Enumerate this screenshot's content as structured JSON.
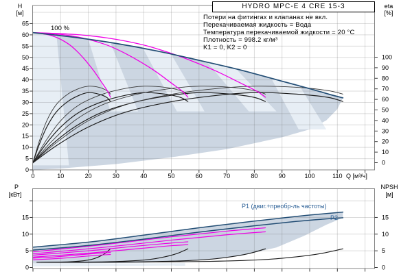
{
  "title_box": "HYDRO MPC-E 4 CRE 15-3",
  "info_lines": [
    "Потери на фитингах и клапанах не вкл.",
    "Перекачиваемая жидкость = Вода",
    "Температура перекачиваемой жидкости = 20 °C",
    "Плотность = 998.2 кг/м³",
    "K1 = 0, K2 = 0"
  ],
  "labels": {
    "speed_100": "100 %",
    "p1_curve": "P1 (двиг.+преобр-ль частоты)",
    "p2_curve": "P2",
    "h_name": "H",
    "h_unit": "[м]",
    "eta_name": "eta",
    "eta_unit": "[%]",
    "q_axis": "Q [м³/ч]",
    "p_name": "P",
    "p_unit": "[кВт]",
    "npsh_name": "NPSH",
    "npsh_unit": "[м]"
  },
  "colors": {
    "curve_blue": "#224d74",
    "curve_magenta": "#ef00e6",
    "curve_black": "#1c1c1c",
    "curve_black_soft": "#3a3a3a",
    "fill": "#ccd6e2",
    "fill_light": "#e7eef5",
    "grid": "rgba(90,90,90,0.22)",
    "frame": "#848484",
    "tick": "#3c3c3c",
    "text_blue": "#2a5f96"
  },
  "chart_data": [
    {
      "type": "line",
      "title": "HYDRO MPC-E 4 CRE 15-3",
      "xlabel": "Q [м³/ч]",
      "ylabel_left": "H [м]",
      "ylabel_right": "eta [%]",
      "xlim": [
        0,
        123.5
      ],
      "ylim_left": [
        0,
        73
      ],
      "ylim_right": [
        0,
        100
      ],
      "x_ticks": [
        0,
        10,
        20,
        30,
        40,
        50,
        60,
        70,
        80,
        90,
        100,
        110
      ],
      "h_ticks": [
        0,
        5,
        10,
        15,
        20,
        25,
        30,
        35,
        40,
        45,
        50,
        55,
        60,
        65
      ],
      "eta_ticks": [
        0,
        10,
        20,
        30,
        40,
        50,
        60,
        70,
        80,
        90,
        100
      ],
      "grid": true,
      "series": [
        {
          "name": "hq-max-speed-4pumps",
          "color": "blue",
          "width": 1.7,
          "points": [
            [
              0,
              61
            ],
            [
              15,
              58.9
            ],
            [
              30,
              56.2
            ],
            [
              45,
              52.8
            ],
            [
              60,
              48.7
            ],
            [
              75,
              44.4
            ],
            [
              90,
              39.4
            ],
            [
              100,
              36.1
            ],
            [
              107,
              33.6
            ],
            [
              112,
              32
            ]
          ]
        },
        {
          "name": "hq-100pct-1pump",
          "color": "magenta",
          "width": 1.3,
          "points": [
            [
              0,
              61
            ],
            [
              5,
              60.2
            ],
            [
              9,
              58.6
            ],
            [
              13,
              55.8
            ],
            [
              16,
              52.6
            ],
            [
              19,
              48.6
            ],
            [
              22,
              44
            ],
            [
              25,
              38.6
            ],
            [
              27,
              34.9
            ],
            [
              28,
              32.3
            ]
          ]
        },
        {
          "name": "hq-100pct-2pumps",
          "color": "magenta",
          "width": 1.3,
          "points": [
            [
              0,
              61
            ],
            [
              10,
              60.2
            ],
            [
              18,
              58.6
            ],
            [
              26,
              55.8
            ],
            [
              32,
              52.6
            ],
            [
              38,
              48.6
            ],
            [
              44,
              44
            ],
            [
              50,
              38.6
            ],
            [
              54,
              34.9
            ],
            [
              56,
              32.3
            ]
          ]
        },
        {
          "name": "hq-100pct-3pumps",
          "color": "magenta",
          "width": 1.3,
          "points": [
            [
              0,
              61
            ],
            [
              15,
              60.2
            ],
            [
              27,
              58.6
            ],
            [
              39,
              55.8
            ],
            [
              48,
              52.6
            ],
            [
              57,
              48.6
            ],
            [
              66,
              44
            ],
            [
              75,
              38.6
            ],
            [
              81,
              34.9
            ],
            [
              84,
              32.3
            ]
          ]
        }
      ],
      "eta_curves": {
        "qmax": [
          28,
          56,
          84,
          112
        ],
        "profile_a": [
          [
            0,
            0
          ],
          [
            0.08,
            20
          ],
          [
            0.18,
            40
          ],
          [
            0.3,
            55
          ],
          [
            0.45,
            65
          ],
          [
            0.6,
            70.5
          ],
          [
            0.72,
            72.5
          ],
          [
            0.85,
            71.5
          ],
          [
            0.95,
            68.5
          ],
          [
            1,
            65
          ]
        ],
        "profile_b": [
          [
            0,
            0
          ],
          [
            0.08,
            17
          ],
          [
            0.18,
            34
          ],
          [
            0.3,
            48
          ],
          [
            0.45,
            58
          ],
          [
            0.6,
            64
          ],
          [
            0.72,
            66.5
          ],
          [
            0.85,
            65
          ],
          [
            0.95,
            62
          ],
          [
            1,
            58
          ]
        ]
      },
      "envelope": {
        "upper": [
          [
            0,
            61
          ],
          [
            15,
            58.9
          ],
          [
            30,
            56.2
          ],
          [
            45,
            52.8
          ],
          [
            60,
            48.7
          ],
          [
            75,
            44.4
          ],
          [
            90,
            39.4
          ],
          [
            100,
            36.1
          ],
          [
            107,
            33.6
          ],
          [
            112,
            32
          ]
        ],
        "lower": [
          [
            0,
            0
          ],
          [
            10,
            0.6
          ],
          [
            30,
            2.6
          ],
          [
            50,
            5.6
          ],
          [
            70,
            9.2
          ],
          [
            90,
            14.5
          ],
          [
            100,
            18
          ],
          [
            106,
            22
          ],
          [
            110,
            27
          ],
          [
            112,
            32
          ]
        ]
      },
      "light_bands": [
        [
          [
            0,
            61
          ],
          [
            8.5,
            60
          ],
          [
            13,
            2
          ],
          [
            0,
            2
          ]
        ],
        [
          [
            20,
            58
          ],
          [
            28,
            56.5
          ],
          [
            38,
            26
          ],
          [
            28,
            26
          ]
        ],
        [
          [
            40,
            53.5
          ],
          [
            50,
            51.3
          ],
          [
            62,
            26
          ],
          [
            52,
            26
          ]
        ],
        [
          [
            63,
            47.8
          ],
          [
            73,
            45.4
          ],
          [
            88,
            26
          ],
          [
            78,
            26
          ]
        ],
        [
          [
            86,
            41
          ],
          [
            96,
            38
          ],
          [
            106,
            18
          ],
          [
            96,
            18
          ]
        ]
      ]
    },
    {
      "type": "line",
      "xlabel": "Q [м³/ч]",
      "ylabel_left": "P [кВт]",
      "ylabel_right": "NPSH [м]",
      "xlim": [
        0,
        123.5
      ],
      "ylim_left": [
        0,
        23.5
      ],
      "p_ticks_labeled": [
        0,
        5,
        10,
        15
      ],
      "p_ticks_all": [
        0,
        5,
        10,
        15,
        20
      ],
      "npsh_ticks": [
        0,
        5,
        10,
        15
      ],
      "grid": true,
      "series": [
        {
          "name": "p1-4pumps",
          "color": "blue",
          "width": 1.5,
          "points": [
            [
              0,
              6.1
            ],
            [
              20,
              7.6
            ],
            [
              40,
              9.7
            ],
            [
              60,
              11.9
            ],
            [
              80,
              13.9
            ],
            [
              95,
              15.3
            ],
            [
              105,
              16.1
            ],
            [
              112,
              16.6
            ]
          ]
        },
        {
          "name": "p2-4pumps",
          "color": "blue",
          "width": 1.5,
          "points": [
            [
              0,
              5.2
            ],
            [
              20,
              6.6
            ],
            [
              40,
              8.5
            ],
            [
              60,
              10.6
            ],
            [
              80,
              12.5
            ],
            [
              95,
              13.8
            ],
            [
              105,
              14.5
            ],
            [
              112,
              14.9
            ]
          ]
        },
        {
          "name": "p1-3pumps",
          "color": "magenta",
          "width": 1.2,
          "points": [
            [
              0,
              4.7
            ],
            [
              25,
              6.8
            ],
            [
              50,
              9.2
            ],
            [
              70,
              10.9
            ],
            [
              84,
              11.9
            ]
          ]
        },
        {
          "name": "p2-3pumps",
          "color": "magenta",
          "width": 1.2,
          "points": [
            [
              0,
              4.1
            ],
            [
              25,
              6.0
            ],
            [
              50,
              8.2
            ],
            [
              70,
              9.8
            ],
            [
              84,
              10.7
            ]
          ]
        },
        {
          "name": "p1-2pumps",
          "color": "magenta",
          "width": 1.2,
          "points": [
            [
              0,
              3.7
            ],
            [
              20,
              5.0
            ],
            [
              36,
              6.3
            ],
            [
              48,
              7.2
            ],
            [
              56,
              7.7
            ]
          ]
        },
        {
          "name": "p2-2pumps",
          "color": "magenta",
          "width": 1.2,
          "points": [
            [
              0,
              3.1
            ],
            [
              20,
              4.3
            ],
            [
              36,
              5.5
            ],
            [
              48,
              6.4
            ],
            [
              56,
              6.85
            ]
          ]
        },
        {
          "name": "p1-1pump",
          "color": "magenta",
          "width": 1.2,
          "points": [
            [
              0,
              2.8
            ],
            [
              10,
              3.3
            ],
            [
              18,
              3.9
            ],
            [
              24,
              4.3
            ],
            [
              28,
              4.5
            ]
          ]
        },
        {
          "name": "p2-1pump",
          "color": "magenta",
          "width": 1.2,
          "points": [
            [
              0,
              2.3
            ],
            [
              10,
              2.75
            ],
            [
              18,
              3.3
            ],
            [
              24,
              3.7
            ],
            [
              28,
              3.9
            ]
          ]
        }
      ],
      "npsh_curves": {
        "qmax": [
          28,
          56,
          84,
          112
        ],
        "profile": [
          [
            0.05,
            1.55
          ],
          [
            0.4,
            1.65
          ],
          [
            0.6,
            1.9
          ],
          [
            0.75,
            2.4
          ],
          [
            0.85,
            3.2
          ],
          [
            0.93,
            4.2
          ],
          [
            1,
            5.6
          ]
        ]
      },
      "envelope": {
        "upper": [
          [
            0,
            6.1
          ],
          [
            20,
            7.6
          ],
          [
            40,
            9.7
          ],
          [
            60,
            11.9
          ],
          [
            80,
            13.9
          ],
          [
            95,
            15.3
          ],
          [
            105,
            16.1
          ],
          [
            112,
            16.6
          ]
        ],
        "lower": [
          [
            0,
            1.2
          ],
          [
            20,
            1.25
          ],
          [
            40,
            1.45
          ],
          [
            60,
            2.2
          ],
          [
            75,
            3.5
          ],
          [
            88,
            6.0
          ],
          [
            98,
            9.5
          ],
          [
            106,
            12.8
          ],
          [
            112,
            14.9
          ]
        ]
      },
      "light_bands": [
        [
          [
            0,
            0.3
          ],
          [
            55,
            0.6
          ],
          [
            55,
            1.3
          ],
          [
            0,
            1.1
          ]
        ]
      ]
    }
  ]
}
